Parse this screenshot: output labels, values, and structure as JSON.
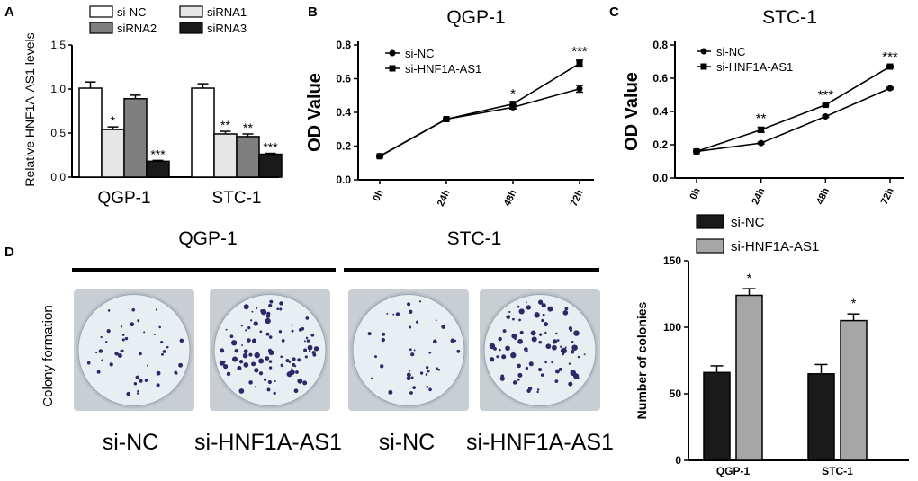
{
  "colors": {
    "white_bar": "#ffffff",
    "light_gray": "#e6e6e6",
    "mid_gray": "#7f7f7f",
    "black": "#1a1a1a",
    "gray_bar": "#a6a6a6",
    "dish_rim": "#b9c0c8",
    "dish_bg": "#e9eef3",
    "colony": "#2a2a66"
  },
  "chart_data": [
    {
      "panel": "A",
      "type": "bar",
      "ylabel": "Relative HNF1A-AS1 levels",
      "categories": [
        "QGP-1",
        "STC-1"
      ],
      "ylim": [
        0,
        1.5
      ],
      "yticks": [
        "0.0",
        "0.5",
        "1.0",
        "1.5"
      ],
      "series": [
        {
          "name": "si-NC",
          "values": [
            1.01,
            1.01
          ],
          "errors": [
            0.07,
            0.05
          ],
          "sig": [
            "",
            ""
          ]
        },
        {
          "name": "siRNA1",
          "values": [
            0.54,
            0.49
          ],
          "errors": [
            0.03,
            0.03
          ],
          "sig": [
            "*",
            "**"
          ]
        },
        {
          "name": "siRNA2",
          "values": [
            0.89,
            0.46
          ],
          "errors": [
            0.04,
            0.03
          ],
          "sig": [
            "",
            "**"
          ]
        },
        {
          "name": "siRNA3",
          "values": [
            0.18,
            0.26
          ],
          "errors": [
            0.01,
            0.01
          ],
          "sig": [
            "***",
            "***"
          ]
        }
      ]
    },
    {
      "panel": "B",
      "type": "line",
      "title": "QGP-1",
      "ylabel": "OD Value",
      "x": [
        "0h",
        "24h",
        "48h",
        "72h"
      ],
      "ylim": [
        0.0,
        0.8
      ],
      "yticks": [
        "0.0",
        "0.2",
        "0.4",
        "0.6",
        "0.8"
      ],
      "series": [
        {
          "name": "si-NC",
          "values": [
            0.14,
            0.36,
            0.43,
            0.54
          ],
          "errors": [
            0.005,
            0.005,
            0.01,
            0.02
          ]
        },
        {
          "name": "si-HNF1A-AS1",
          "values": [
            0.14,
            0.36,
            0.45,
            0.69
          ],
          "errors": [
            0.005,
            0.005,
            0.01,
            0.02
          ]
        }
      ],
      "annotations": [
        "",
        "",
        "*",
        "***"
      ]
    },
    {
      "panel": "C",
      "type": "line",
      "title": "STC-1",
      "ylabel": "OD Value",
      "x": [
        "0h",
        "24h",
        "48h",
        "72h"
      ],
      "ylim": [
        0.0,
        0.8
      ],
      "yticks": [
        "0.0",
        "0.2",
        "0.4",
        "0.6",
        "0.8"
      ],
      "series": [
        {
          "name": "si-NC",
          "values": [
            0.16,
            0.21,
            0.37,
            0.54
          ],
          "errors": [
            0.005,
            0.005,
            0.005,
            0.005
          ]
        },
        {
          "name": "si-HNF1A-AS1",
          "values": [
            0.16,
            0.29,
            0.44,
            0.67
          ],
          "errors": [
            0.005,
            0.015,
            0.005,
            0.005
          ]
        }
      ],
      "annotations": [
        "",
        "**",
        "***",
        "***"
      ]
    },
    {
      "panel": "D",
      "type": "bar",
      "ylabel": "Number of colonies",
      "categories": [
        "QGP-1",
        "STC-1"
      ],
      "ylim": [
        0,
        150
      ],
      "yticks": [
        "0",
        "50",
        "100",
        "150"
      ],
      "series": [
        {
          "name": "si-NC",
          "values": [
            66,
            65
          ],
          "errors": [
            5,
            7
          ],
          "sig": [
            "",
            ""
          ]
        },
        {
          "name": "si-HNF1A-AS1",
          "values": [
            124,
            105
          ],
          "errors": [
            5,
            5
          ],
          "sig": [
            "*",
            "*"
          ]
        }
      ]
    }
  ],
  "panel_letters": {
    "a": "A",
    "b": "B",
    "c": "C",
    "d": "D"
  },
  "photo": {
    "side_label": "Colony formation",
    "groups": [
      "QGP-1",
      "STC-1"
    ],
    "wells": [
      {
        "label": "si-NC",
        "colonies": 45
      },
      {
        "label": "si-HNF1A-AS1",
        "colonies": 95
      },
      {
        "label": "si-NC",
        "colonies": 40
      },
      {
        "label": "si-HNF1A-AS1",
        "colonies": 85
      }
    ]
  }
}
